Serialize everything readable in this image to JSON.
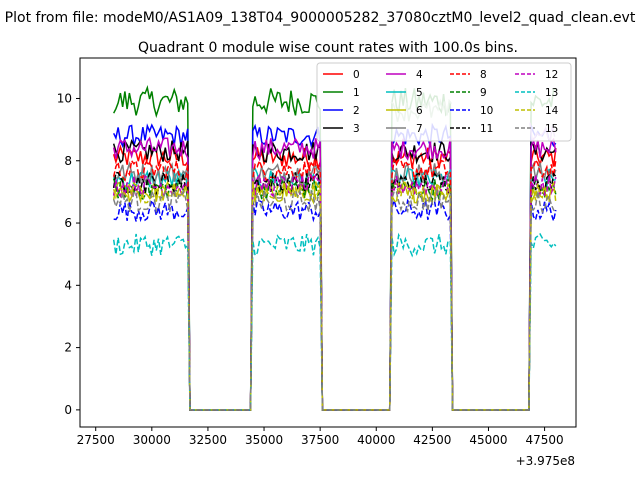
{
  "figure": {
    "suptitle": "Plot from file: modeM0/AS1A09_138T04_9000005282_37080cztM0_level2_quad_clean.evt",
    "title": "Quadrant 0 module wise count rates with 100.0s bins."
  },
  "chart_data": {
    "type": "line",
    "title": "Quadrant 0 module wise count rates with 100.0s bins.",
    "xlabel": "",
    "ylabel": "",
    "x_offset_label": "+3.975e8",
    "xlim": [
      26800,
      48900
    ],
    "ylim": [
      -0.55,
      11.3
    ],
    "x_ticks": [
      27500,
      30000,
      32500,
      35000,
      37500,
      40000,
      42500,
      45000,
      47500
    ],
    "y_ticks": [
      0,
      2,
      4,
      6,
      8,
      10
    ],
    "grid": false,
    "legend_position": "top-right",
    "legend_columns": 4,
    "x_range": [
      28300,
      48000
    ],
    "bin_seconds": 100,
    "active_intervals": [
      [
        28300,
        31650
      ],
      [
        34450,
        37550
      ],
      [
        40650,
        43350
      ],
      [
        46850,
        48000
      ]
    ],
    "series": [
      {
        "name": "0",
        "color": "#ff0000",
        "dash": "solid",
        "level": 8.1
      },
      {
        "name": "1",
        "color": "#008000",
        "dash": "solid",
        "level": 9.9
      },
      {
        "name": "2",
        "color": "#0000ff",
        "dash": "solid",
        "level": 8.8
      },
      {
        "name": "3",
        "color": "#000000",
        "dash": "solid",
        "level": 8.3
      },
      {
        "name": "4",
        "color": "#bf00bf",
        "dash": "solid",
        "level": 8.4
      },
      {
        "name": "5",
        "color": "#00bfbf",
        "dash": "solid",
        "level": 7.4
      },
      {
        "name": "6",
        "color": "#bfbf00",
        "dash": "solid",
        "level": 7.0
      },
      {
        "name": "7",
        "color": "#808080",
        "dash": "solid",
        "level": 7.6
      },
      {
        "name": "8",
        "color": "#ff0000",
        "dash": "dashed",
        "level": 7.7
      },
      {
        "name": "9",
        "color": "#008000",
        "dash": "dashed",
        "level": 7.1
      },
      {
        "name": "10",
        "color": "#0000ff",
        "dash": "dashed",
        "level": 6.4
      },
      {
        "name": "11",
        "color": "#000000",
        "dash": "dashed",
        "level": 7.3
      },
      {
        "name": "12",
        "color": "#bf00bf",
        "dash": "dashed",
        "level": 7.2
      },
      {
        "name": "13",
        "color": "#00bfbf",
        "dash": "dashed",
        "level": 5.3
      },
      {
        "name": "14",
        "color": "#bfbf00",
        "dash": "dashed",
        "level": 7.0
      },
      {
        "name": "15",
        "color": "#808080",
        "dash": "dashed",
        "level": 6.7
      }
    ],
    "overlays": [
      {
        "color": "#8fbc8f",
        "interval_index": 2,
        "level": 9.6
      },
      {
        "color": "#c080e8",
        "interval_index": 3,
        "level": 8.9
      }
    ]
  }
}
